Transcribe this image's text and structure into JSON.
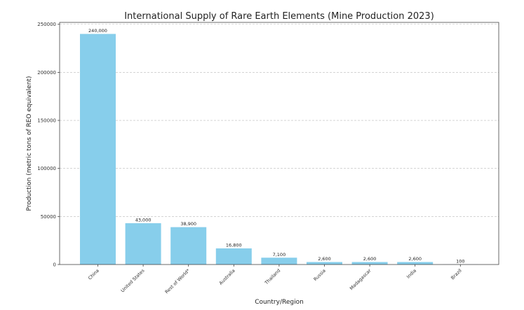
{
  "chart_data": {
    "type": "bar",
    "title": "International Supply of Rare Earth Elements (Mine Production 2023)",
    "xlabel": "Country/Region",
    "ylabel": "Production (metric tons of REO equivalent)",
    "categories": [
      "China",
      "United States",
      "Rest of World*",
      "Australia",
      "Thailand",
      "Russia",
      "Madagascar",
      "India",
      "Brazil"
    ],
    "values": [
      240000,
      43000,
      38900,
      16800,
      7100,
      2600,
      2600,
      2600,
      100
    ],
    "value_labels": [
      "240,000",
      "43,000",
      "38,900",
      "16,800",
      "7,100",
      "2,600",
      "2,600",
      "2,600",
      "100"
    ],
    "ylim": [
      0,
      252000
    ],
    "yticks": [
      0,
      50000,
      100000,
      150000,
      200000,
      250000
    ],
    "ytick_labels": [
      "0",
      "50000",
      "100000",
      "150000",
      "200000",
      "250000"
    ],
    "grid": "y-dashed",
    "bar_color": "#87ceeb"
  }
}
